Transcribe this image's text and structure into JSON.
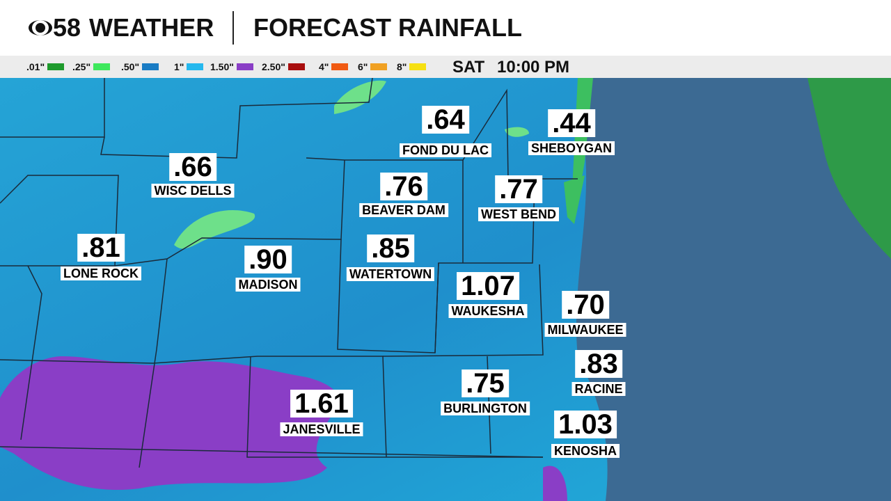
{
  "header": {
    "brand": "58",
    "brand_word": "WEATHER",
    "title": "FORECAST RAINFALL"
  },
  "legend": {
    "items": [
      {
        "label": ".01\"",
        "color": "#1e9a2c"
      },
      {
        "label": ".25\"",
        "color": "#3ee85c"
      },
      {
        "label": ".50\"",
        "color": "#1a7cc4"
      },
      {
        "label": "1\"",
        "color": "#25b8ee"
      },
      {
        "label": "1.50\"",
        "color": "#8a3ec6"
      },
      {
        "label": "2.50\"",
        "color": "#a80e0e"
      },
      {
        "label": "4\"",
        "color": "#f05a12"
      },
      {
        "label": "6\"",
        "color": "#f0a022"
      },
      {
        "label": "8\"",
        "color": "#f6e012"
      }
    ],
    "day": "SAT",
    "time": "10:00 PM"
  },
  "cities": [
    {
      "amount": ".64",
      "name": "FOND DU LAC"
    },
    {
      "amount": ".44",
      "name": "SHEBOYGAN"
    },
    {
      "amount": ".66",
      "name": "WISC DELLS"
    },
    {
      "amount": ".76",
      "name": "BEAVER DAM"
    },
    {
      "amount": ".77",
      "name": "WEST BEND"
    },
    {
      "amount": ".81",
      "name": "LONE ROCK"
    },
    {
      "amount": ".90",
      "name": "MADISON"
    },
    {
      "amount": ".85",
      "name": "WATERTOWN"
    },
    {
      "amount": "1.07",
      "name": "WAUKESHA"
    },
    {
      "amount": ".70",
      "name": "MILWAUKEE"
    },
    {
      "amount": ".83",
      "name": "RACINE"
    },
    {
      "amount": ".75",
      "name": "BURLINGTON"
    },
    {
      "amount": "1.03",
      "name": "KENOSHA"
    },
    {
      "amount": "1.61",
      "name": "JANESVILLE"
    }
  ]
}
